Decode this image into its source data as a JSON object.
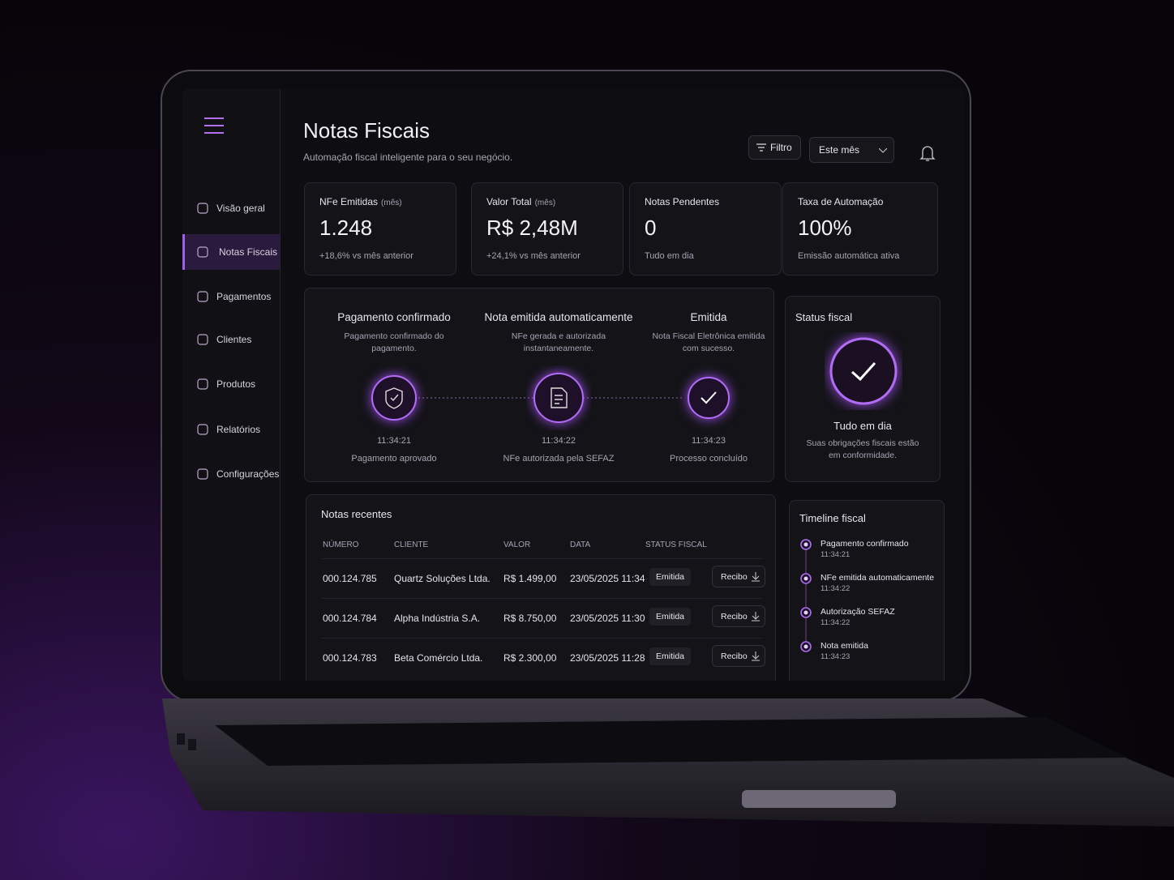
{
  "sidebar": {
    "items": [
      "Visão geral",
      "Notas Fiscais",
      "Pagamentos",
      "Clientes",
      "Produtos",
      "Relatórios",
      "Configurações"
    ]
  },
  "header": {
    "title": "Notas Fiscais",
    "subtitle": "Automação fiscal inteligente para o seu negócio.",
    "filter": "Filtro",
    "period": "Este mês"
  },
  "kpis": [
    {
      "label": "NFe Emitidas",
      "qualifier": "(mês)",
      "value": "1.248",
      "note": "+18,6% vs mês anterior"
    },
    {
      "label": "Valor Total",
      "qualifier": "(mês)",
      "value": "R$ 2,48M",
      "note": "+24,1% vs mês anterior"
    },
    {
      "label": "Notas Pendentes",
      "value": "0",
      "note": "Tudo em dia"
    },
    {
      "label": "Taxa de Automação",
      "value": "100%",
      "note": "Emissão automática ativa"
    }
  ],
  "flow": [
    {
      "title": "Pagamento confirmado",
      "description": "Pagamento confirmado do pagamento.",
      "time": "11:34:21",
      "caption": "Pagamento aprovado"
    },
    {
      "title": "Nota emitida automaticamente",
      "description": "NFe gerada e autorizada instantaneamente.",
      "time": "11:34:22",
      "caption": "NFe autorizada pela SEFAZ"
    },
    {
      "title": "Emitida",
      "description": "Nota Fiscal Eletrônica emitida com sucesso.",
      "time": "11:34:23",
      "caption": "Processo concluído"
    }
  ],
  "status": {
    "title": "Status fiscal",
    "headline": "Tudo em dia",
    "description": "Suas obrigações fiscais estão em conformidade."
  },
  "table": {
    "title": "Notas recentes",
    "columns": [
      "NÚMERO",
      "CLIENTE",
      "VALOR",
      "DATA",
      "STATUS FISCAL"
    ],
    "rows": [
      [
        "000.124.785",
        "Quartz Soluções Ltda.",
        "R$ 1.499,00",
        "23/05/2025 11:34",
        "Emitida",
        "Recibo"
      ],
      [
        "000.124.784",
        "Alpha Indústria S.A.",
        "R$ 8.750,00",
        "23/05/2025 11:30",
        "Emitida",
        "Recibo"
      ],
      [
        "000.124.783",
        "Beta Comércio Ltda.",
        "R$ 2.300,00",
        "23/05/2025 11:28",
        "Emitida",
        "Recibo"
      ]
    ]
  },
  "timeline": {
    "title": "Timeline fiscal",
    "events": [
      {
        "label": "Pagamento confirmado",
        "time": "11:34:21"
      },
      {
        "label": "NFe emitida automaticamente",
        "time": "11:34:22"
      },
      {
        "label": "Autorização SEFAZ",
        "time": "11:34:22"
      },
      {
        "label": "Nota emitida",
        "time": "11:34:23"
      }
    ]
  }
}
